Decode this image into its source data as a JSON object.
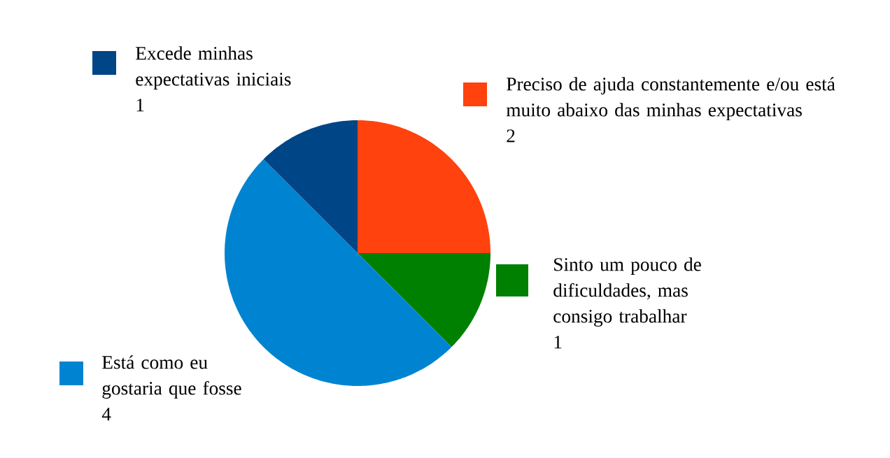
{
  "chart_data": {
    "type": "pie",
    "categories": [
      "Preciso de ajuda constantemente e/ou está muito abaixo das minhas expectativas",
      "Sinto um pouco de dificuldades, mas consigo trabalhar",
      "Está como eu gostaria que fosse",
      "Excede minhas expectativas iniciais"
    ],
    "values": [
      2,
      1,
      4,
      1
    ],
    "colors": [
      "#ff420e",
      "#008000",
      "#0084d1",
      "#004586"
    ],
    "data_labels": true,
    "legend": "right"
  }
}
